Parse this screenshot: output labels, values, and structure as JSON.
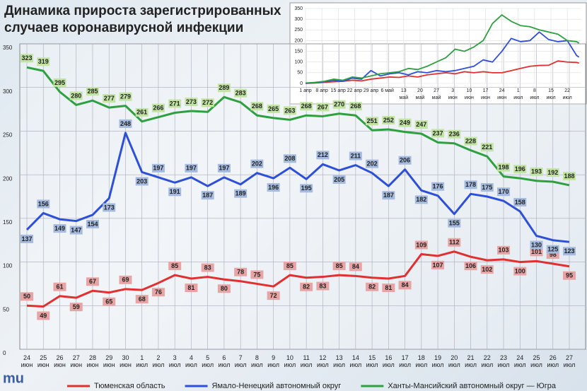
{
  "chart_data": [
    {
      "type": "line",
      "title": "Динамика прироста зарегистрированных случаев коронавирусной инфекции",
      "categories": [
        "24 июн",
        "25 июн",
        "26 июн",
        "27 июн",
        "28 июн",
        "29 июн",
        "30 июн",
        "1 июл",
        "2 июл",
        "3 июл",
        "4 июл",
        "5 июл",
        "6 июл",
        "7 июл",
        "8 июл",
        "9 июл",
        "10 июл",
        "11 июл",
        "12 июл",
        "13 июл",
        "14 июл",
        "15 июл",
        "16 июл",
        "17 июл",
        "18 июл",
        "19 июл",
        "20 июл",
        "21 июл",
        "22 июл",
        "23 июл",
        "24 июл",
        "25 июл",
        "26 июл",
        "27 июл"
      ],
      "series": [
        {
          "name": "Тюменская область",
          "color": "#e03030",
          "label_color": "#e8a4a4",
          "values": [
            50,
            49,
            61,
            59,
            67,
            65,
            69,
            68,
            76,
            85,
            81,
            83,
            80,
            78,
            75,
            72,
            85,
            82,
            83,
            85,
            84,
            82,
            81,
            84,
            109,
            107,
            112,
            106,
            102,
            103,
            100,
            101,
            98,
            95
          ]
        },
        {
          "name": "Ямало-Ненецкий автономный округ",
          "color": "#2e4fd8",
          "label_color": "#a4bade",
          "values": [
            137,
            156,
            149,
            147,
            154,
            173,
            248,
            203,
            197,
            191,
            197,
            187,
            197,
            189,
            202,
            196,
            208,
            195,
            212,
            205,
            211,
            202,
            187,
            206,
            182,
            176,
            155,
            178,
            175,
            170,
            158,
            130,
            125,
            123
          ]
        },
        {
          "name": "Ханты-Мансийский автономный округ — Югра",
          "color": "#2ea040",
          "label_color": "#c2e4a2",
          "values": [
            323,
            319,
            295,
            280,
            285,
            277,
            279,
            261,
            266,
            271,
            273,
            272,
            289,
            283,
            268,
            265,
            263,
            268,
            267,
            270,
            268,
            251,
            252,
            249,
            247,
            237,
            236,
            228,
            221,
            198,
            196,
            193,
            192,
            188
          ]
        }
      ],
      "ylim": [
        0,
        350
      ],
      "yticks": [
        0,
        50,
        100,
        150,
        200,
        250,
        300,
        350
      ],
      "grid": true,
      "legend": "bottom"
    },
    {
      "type": "line",
      "x": [
        0,
        4,
        8,
        12,
        16,
        20,
        24,
        28,
        32,
        36,
        40,
        44,
        48,
        52,
        56,
        60,
        64,
        68,
        72,
        76,
        80,
        84,
        88,
        92,
        96,
        100,
        104,
        108,
        112,
        116,
        117
      ],
      "series": [
        {
          "color": "#e03030",
          "values": [
            0,
            2,
            5,
            8,
            10,
            15,
            12,
            20,
            25,
            30,
            28,
            35,
            30,
            40,
            45,
            50,
            45,
            55,
            50,
            55,
            50,
            50,
            60,
            70,
            80,
            84,
            85,
            105,
            100,
            98,
            95
          ]
        },
        {
          "color": "#2e4fd8",
          "values": [
            1,
            3,
            8,
            15,
            10,
            25,
            20,
            60,
            35,
            45,
            50,
            40,
            55,
            50,
            60,
            55,
            60,
            70,
            80,
            110,
            100,
            150,
            210,
            195,
            200,
            240,
            205,
            195,
            200,
            130,
            123
          ]
        },
        {
          "color": "#2ea040",
          "values": [
            2,
            5,
            10,
            20,
            15,
            30,
            25,
            35,
            45,
            50,
            55,
            70,
            65,
            80,
            100,
            120,
            160,
            150,
            170,
            200,
            280,
            320,
            290,
            270,
            265,
            250,
            240,
            230,
            200,
            195,
            188
          ]
        }
      ],
      "xlim": [
        0,
        118
      ],
      "xticks": [
        {
          "value": 0,
          "label": "1 апр"
        },
        {
          "value": 7,
          "label": "8 апр"
        },
        {
          "value": 14,
          "label": "15 апр"
        },
        {
          "value": 21,
          "label": "22 апр"
        },
        {
          "value": 28,
          "label": "29 апр"
        },
        {
          "value": 35,
          "label": "6 май"
        },
        {
          "value": 42,
          "label": "13 май"
        },
        {
          "value": 49,
          "label": "20 май"
        },
        {
          "value": 56,
          "label": "27 май"
        },
        {
          "value": 63,
          "label": "3 июн"
        },
        {
          "value": 70,
          "label": "10 июн"
        },
        {
          "value": 77,
          "label": "17 июн"
        },
        {
          "value": 84,
          "label": "24 июн"
        },
        {
          "value": 91,
          "label": "1 июл"
        },
        {
          "value": 98,
          "label": "8 июл"
        },
        {
          "value": 105,
          "label": "15 июл"
        },
        {
          "value": 112,
          "label": "22 июл"
        }
      ],
      "ylim": [
        0,
        350
      ],
      "yticks": [
        0,
        50,
        100,
        150,
        200,
        250,
        300,
        350
      ],
      "grid": true
    }
  ]
}
